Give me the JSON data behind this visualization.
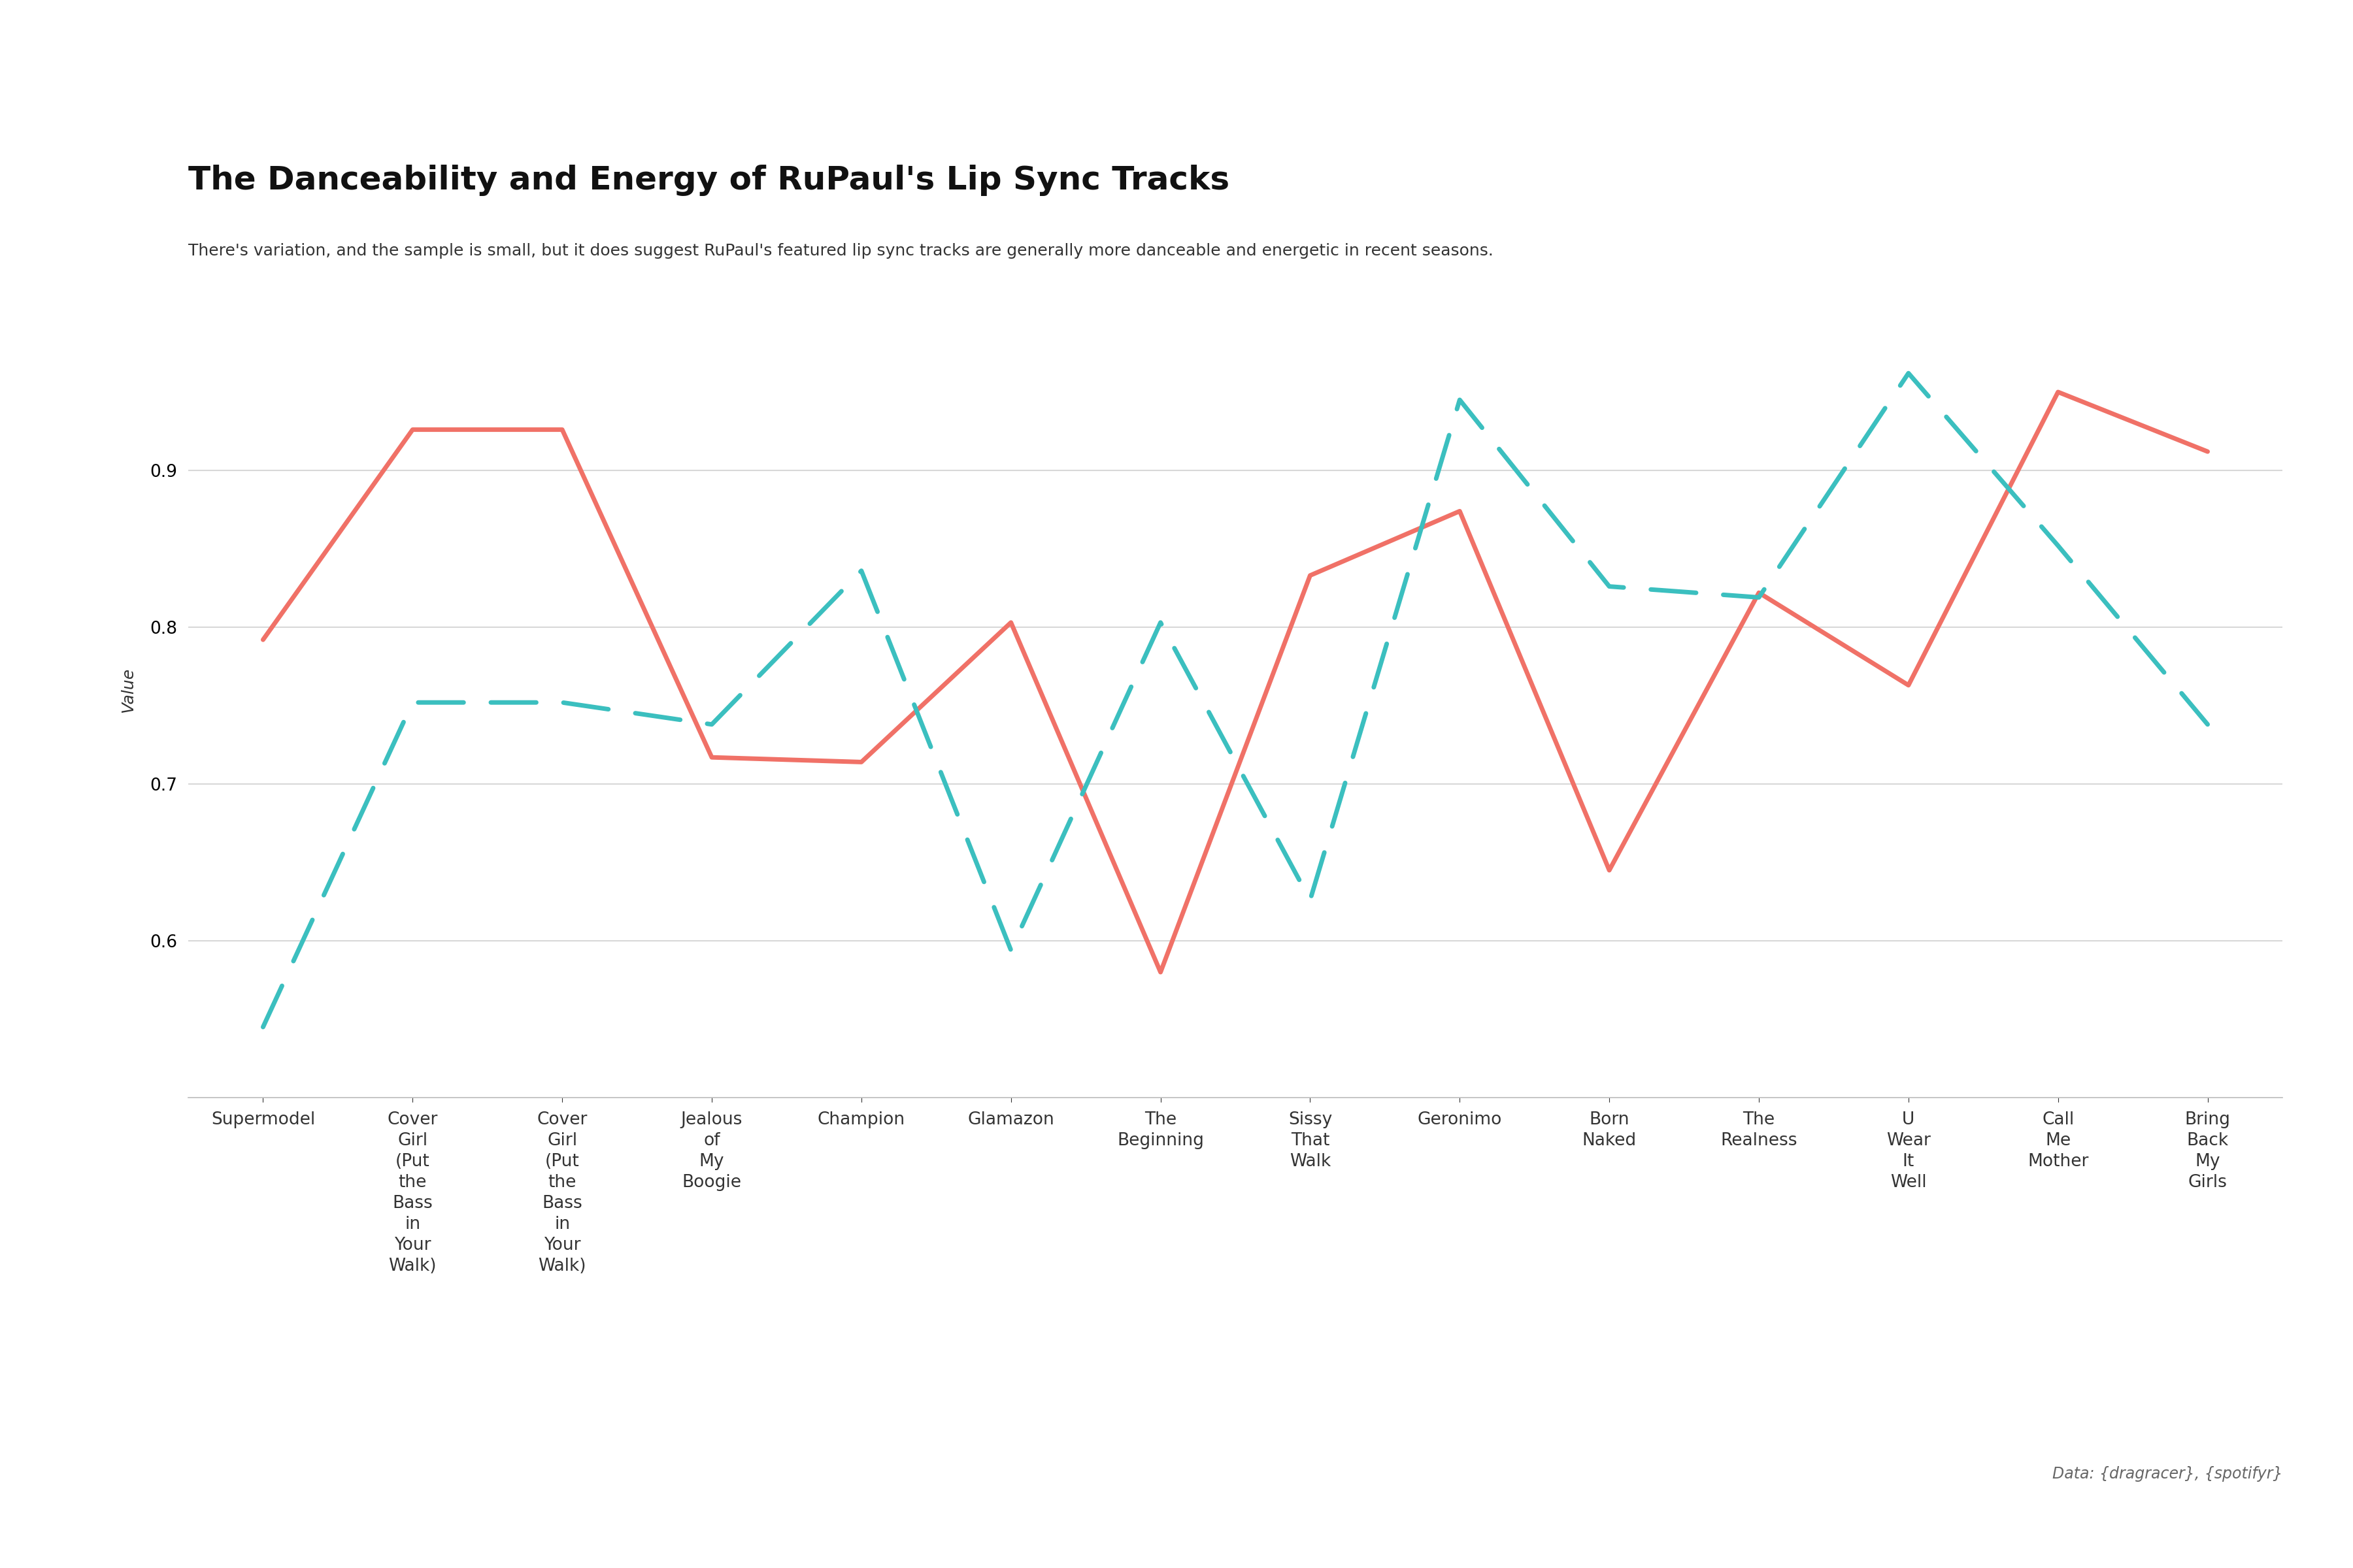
{
  "title": "The Danceability and Energy of RuPaul's Lip Sync Tracks",
  "subtitle": "There's variation, and the sample is small, but it does suggest RuPaul's featured lip sync tracks are generally more danceable and energetic in recent seasons.",
  "ylabel": "Value",
  "source": "Data: {dragracer}, {spotifyr}",
  "categories": [
    "Supermodel",
    "Cover\nGirl\n(Put\nthe\nBass\nin\nYour\nWalk)",
    "Cover\nGirl\n(Put\nthe\nBass\nin\nYour\nWalk)",
    "Jealous\nof\nMy\nBoogie",
    "Champion",
    "Glamazon",
    "The\nBeginning",
    "Sissy\nThat\nWalk",
    "Geronimo",
    "Born\nNaked",
    "The\nRealness",
    "U\nWear\nIt\nWell",
    "Call\nMe\nMother",
    "Bring\nBack\nMy\nGirls"
  ],
  "danceability": [
    0.792,
    0.926,
    0.926,
    0.717,
    0.714,
    0.803,
    0.58,
    0.833,
    0.874,
    0.645,
    0.822,
    0.763,
    0.95,
    0.912
  ],
  "energy": [
    0.545,
    0.752,
    0.752,
    0.738,
    0.836,
    0.594,
    0.803,
    0.626,
    0.945,
    0.826,
    0.819,
    0.962,
    0.852,
    0.738
  ],
  "dance_color": "#F07167",
  "energy_color": "#3BBFBF",
  "bg_color": "#ffffff",
  "grid_color": "#d8d8d8",
  "ylim_min": 0.5,
  "ylim_max": 1.02,
  "yticks": [
    0.6,
    0.7,
    0.8,
    0.9
  ],
  "title_fontsize": 36,
  "subtitle_fontsize": 18,
  "ylabel_fontsize": 18,
  "tick_fontsize": 19,
  "legend_fontsize": 22,
  "source_fontsize": 17
}
